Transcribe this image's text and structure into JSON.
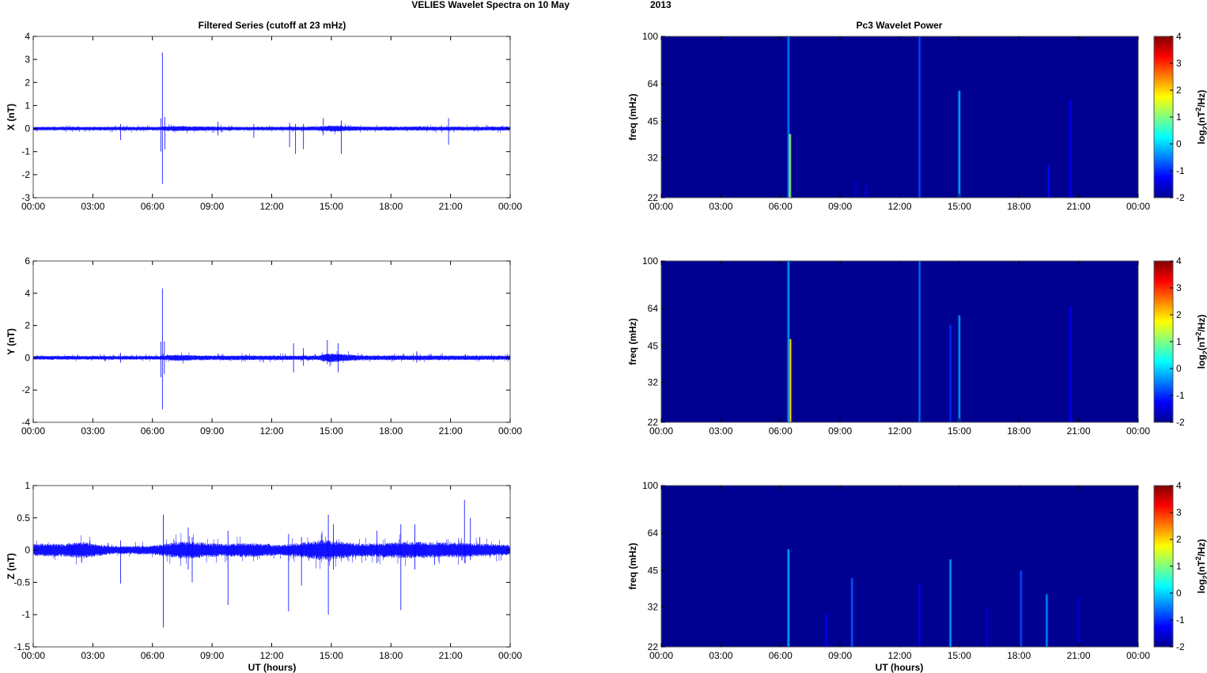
{
  "title": "VELIES Wavelet Spectra on 10 May",
  "title_year": "2013",
  "left_column_title": "Filtered Series (cutoff at 23 mHz)",
  "right_column_title": "Pc3 Wavelet Power",
  "xlabel": "UT (hours)",
  "colors": {
    "trace": "#0000ff",
    "background": "#00008f"
  },
  "chart_data": [
    {
      "type": "line",
      "id": "series-x",
      "ylabel": "X (nT)",
      "xlim": [
        0,
        24
      ],
      "ylim": [
        -3,
        4
      ],
      "yticks": [
        -3,
        -2,
        -1,
        0,
        1,
        2,
        3,
        4
      ],
      "x_tick_hours": [
        0,
        3,
        6,
        9,
        12,
        15,
        18,
        21,
        24
      ],
      "x_tick_labels": [
        "00:00",
        "03:00",
        "06:00",
        "09:00",
        "12:00",
        "15:00",
        "18:00",
        "21:00",
        "00:00"
      ],
      "noise_envelope": [
        {
          "t": 0,
          "a": 0.08
        },
        {
          "t": 6.3,
          "a": 0.08
        },
        {
          "t": 7.0,
          "a": 0.12
        },
        {
          "t": 8.0,
          "a": 0.1
        },
        {
          "t": 10.5,
          "a": 0.08
        },
        {
          "t": 14.3,
          "a": 0.09
        },
        {
          "t": 15.0,
          "a": 0.14
        },
        {
          "t": 16.5,
          "a": 0.09
        },
        {
          "t": 24,
          "a": 0.09
        }
      ],
      "spikes": [
        {
          "t": 6.5,
          "max": 3.3,
          "min": -2.4
        },
        {
          "t": 6.42,
          "max": 0.45,
          "min": -1.0
        },
        {
          "t": 6.62,
          "max": 0.5,
          "min": -0.9
        },
        {
          "t": 12.9,
          "max": 0.25,
          "min": -0.8
        },
        {
          "t": 13.2,
          "max": 0.2,
          "min": -1.1
        },
        {
          "t": 13.6,
          "max": 0.2,
          "min": -0.9
        },
        {
          "t": 14.6,
          "max": 0.45,
          "min": -0.3
        },
        {
          "t": 15.5,
          "max": 0.35,
          "min": -1.1
        },
        {
          "t": 20.9,
          "max": 0.45,
          "min": -0.7
        },
        {
          "t": 4.4,
          "max": 0.2,
          "min": -0.5
        },
        {
          "t": 11.1,
          "max": 0.2,
          "min": -0.4
        },
        {
          "t": 9.3,
          "max": 0.3,
          "min": -0.3
        }
      ]
    },
    {
      "type": "line",
      "id": "series-y",
      "ylabel": "Y (nT)",
      "xlim": [
        0,
        24
      ],
      "ylim": [
        -4,
        6
      ],
      "yticks": [
        -4,
        -2,
        0,
        2,
        4,
        6
      ],
      "x_tick_hours": [
        0,
        3,
        6,
        9,
        12,
        15,
        18,
        21,
        24
      ],
      "x_tick_labels": [
        "00:00",
        "03:00",
        "06:00",
        "09:00",
        "12:00",
        "15:00",
        "18:00",
        "21:00",
        "00:00"
      ],
      "noise_envelope": [
        {
          "t": 0,
          "a": 0.12
        },
        {
          "t": 6.3,
          "a": 0.12
        },
        {
          "t": 7.2,
          "a": 0.2
        },
        {
          "t": 8.5,
          "a": 0.15
        },
        {
          "t": 14.3,
          "a": 0.14
        },
        {
          "t": 14.9,
          "a": 0.3
        },
        {
          "t": 16.5,
          "a": 0.15
        },
        {
          "t": 24,
          "a": 0.14
        }
      ],
      "spikes": [
        {
          "t": 6.5,
          "max": 4.3,
          "min": -3.2
        },
        {
          "t": 6.42,
          "max": 1.0,
          "min": -1.2
        },
        {
          "t": 6.6,
          "max": 1.0,
          "min": -1.0
        },
        {
          "t": 13.1,
          "max": 0.9,
          "min": -0.9
        },
        {
          "t": 13.6,
          "max": 0.6,
          "min": -0.5
        },
        {
          "t": 14.8,
          "max": 1.1,
          "min": -0.4
        },
        {
          "t": 15.35,
          "max": 0.9,
          "min": -0.9
        },
        {
          "t": 19.3,
          "max": 0.4,
          "min": -0.3
        },
        {
          "t": 4.4,
          "max": 0.3,
          "min": -0.3
        }
      ]
    },
    {
      "type": "line",
      "id": "series-z",
      "ylabel": "Z (nT)",
      "xlim": [
        0,
        24
      ],
      "ylim": [
        -1.5,
        1
      ],
      "yticks": [
        -1.5,
        -1,
        -0.5,
        0,
        0.5,
        1
      ],
      "x_tick_hours": [
        0,
        3,
        6,
        9,
        12,
        15,
        18,
        21,
        24
      ],
      "x_tick_labels": [
        "00:00",
        "03:00",
        "06:00",
        "09:00",
        "12:00",
        "15:00",
        "18:00",
        "21:00",
        "00:00"
      ],
      "noise_envelope": [
        {
          "t": 0,
          "a": 0.1
        },
        {
          "t": 1.5,
          "a": 0.1
        },
        {
          "t": 2.5,
          "a": 0.13
        },
        {
          "t": 4.0,
          "a": 0.06
        },
        {
          "t": 6.0,
          "a": 0.07
        },
        {
          "t": 7.5,
          "a": 0.14
        },
        {
          "t": 9.5,
          "a": 0.1
        },
        {
          "t": 11.0,
          "a": 0.11
        },
        {
          "t": 12.5,
          "a": 0.08
        },
        {
          "t": 14.6,
          "a": 0.16
        },
        {
          "t": 16.5,
          "a": 0.1
        },
        {
          "t": 19.0,
          "a": 0.13
        },
        {
          "t": 22.0,
          "a": 0.11
        },
        {
          "t": 24,
          "a": 0.08
        }
      ],
      "spikes": [
        {
          "t": 6.55,
          "max": 0.55,
          "min": -1.2
        },
        {
          "t": 7.8,
          "max": 0.35,
          "min": -0.3
        },
        {
          "t": 8.0,
          "max": 0.2,
          "min": -0.5
        },
        {
          "t": 9.8,
          "max": 0.3,
          "min": -0.85
        },
        {
          "t": 4.4,
          "max": 0.15,
          "min": -0.52
        },
        {
          "t": 12.85,
          "max": 0.25,
          "min": -0.95
        },
        {
          "t": 13.5,
          "max": 0.2,
          "min": -0.55
        },
        {
          "t": 14.85,
          "max": 0.55,
          "min": -1.0
        },
        {
          "t": 15.1,
          "max": 0.4,
          "min": -0.3
        },
        {
          "t": 18.5,
          "max": 0.4,
          "min": -0.93
        },
        {
          "t": 19.2,
          "max": 0.4,
          "min": -0.3
        },
        {
          "t": 21.7,
          "max": 0.78,
          "min": -0.2
        },
        {
          "t": 22.0,
          "max": 0.5,
          "min": -0.15
        },
        {
          "t": 17.3,
          "max": 0.3,
          "min": -0.2
        }
      ]
    },
    {
      "type": "heatmap",
      "id": "wavelet-x",
      "ylabel": "freq (mHz)",
      "xlim": [
        0,
        24
      ],
      "ylim": [
        22,
        100
      ],
      "yscale": "log",
      "yticks": [
        22,
        32,
        45,
        64,
        100
      ],
      "x_tick_hours": [
        0,
        3,
        6,
        9,
        12,
        15,
        18,
        21,
        24
      ],
      "x_tick_labels": [
        "00:00",
        "03:00",
        "06:00",
        "09:00",
        "12:00",
        "15:00",
        "18:00",
        "21:00",
        "00:00"
      ],
      "colorbar_label": "log2(nT2/Hz)",
      "clim": [
        -2,
        4
      ],
      "cticks": [
        -2,
        -1,
        0,
        1,
        2,
        3,
        4
      ],
      "background_level": -1.9,
      "events": [
        {
          "t": 6.4,
          "fmin": 22,
          "fmax": 100,
          "level": -0.5
        },
        {
          "t": 6.48,
          "fmin": 22,
          "fmax": 40,
          "level": 1.2
        },
        {
          "t": 13.0,
          "fmin": 22,
          "fmax": 100,
          "level": -0.8
        },
        {
          "t": 15.0,
          "fmin": 22,
          "fmax": 60,
          "level": -0.2
        },
        {
          "t": 19.5,
          "fmin": 22,
          "fmax": 30,
          "level": -1.2
        },
        {
          "t": 20.6,
          "fmin": 22,
          "fmax": 55,
          "level": -1.3
        },
        {
          "t": 9.8,
          "fmin": 22,
          "fmax": 26,
          "level": -1.5
        },
        {
          "t": 10.3,
          "fmin": 22,
          "fmax": 25,
          "level": -1.5
        }
      ]
    },
    {
      "type": "heatmap",
      "id": "wavelet-y",
      "ylabel": "freq (mHz)",
      "xlim": [
        0,
        24
      ],
      "ylim": [
        22,
        100
      ],
      "yscale": "log",
      "yticks": [
        22,
        32,
        45,
        64,
        100
      ],
      "x_tick_hours": [
        0,
        3,
        6,
        9,
        12,
        15,
        18,
        21,
        24
      ],
      "x_tick_labels": [
        "00:00",
        "03:00",
        "06:00",
        "09:00",
        "12:00",
        "15:00",
        "18:00",
        "21:00",
        "00:00"
      ],
      "colorbar_label": "log2(nT2/Hz)",
      "clim": [
        -2,
        4
      ],
      "cticks": [
        -2,
        -1,
        0,
        1,
        2,
        3,
        4
      ],
      "background_level": -1.9,
      "events": [
        {
          "t": 6.4,
          "fmin": 22,
          "fmax": 100,
          "level": -0.3
        },
        {
          "t": 6.5,
          "fmin": 22,
          "fmax": 48,
          "level": 2.0
        },
        {
          "t": 13.0,
          "fmin": 22,
          "fmax": 100,
          "level": -0.6
        },
        {
          "t": 14.55,
          "fmin": 22,
          "fmax": 55,
          "level": -1.0
        },
        {
          "t": 15.0,
          "fmin": 22,
          "fmax": 60,
          "level": -0.3
        },
        {
          "t": 20.6,
          "fmin": 22,
          "fmax": 65,
          "level": -1.3
        }
      ]
    },
    {
      "type": "heatmap",
      "id": "wavelet-z",
      "ylabel": "freq (mHz)",
      "xlim": [
        0,
        24
      ],
      "ylim": [
        22,
        100
      ],
      "yscale": "log",
      "yticks": [
        22,
        32,
        45,
        64,
        100
      ],
      "x_tick_hours": [
        0,
        3,
        6,
        9,
        12,
        15,
        18,
        21,
        24
      ],
      "x_tick_labels": [
        "00:00",
        "03:00",
        "06:00",
        "09:00",
        "12:00",
        "15:00",
        "18:00",
        "21:00",
        "00:00"
      ],
      "colorbar_label": "log2(nT2/Hz)",
      "clim": [
        -2,
        4
      ],
      "cticks": [
        -2,
        -1,
        0,
        1,
        2,
        3,
        4
      ],
      "background_level": -1.9,
      "events": [
        {
          "t": 6.4,
          "fmin": 22,
          "fmax": 55,
          "level": -0.2
        },
        {
          "t": 8.3,
          "fmin": 22,
          "fmax": 30,
          "level": -1.3
        },
        {
          "t": 9.6,
          "fmin": 22,
          "fmax": 42,
          "level": -0.7
        },
        {
          "t": 13.0,
          "fmin": 22,
          "fmax": 40,
          "level": -1.3
        },
        {
          "t": 14.55,
          "fmin": 22,
          "fmax": 50,
          "level": -0.3
        },
        {
          "t": 16.4,
          "fmin": 22,
          "fmax": 32,
          "level": -1.5
        },
        {
          "t": 18.1,
          "fmin": 22,
          "fmax": 45,
          "level": -0.8
        },
        {
          "t": 19.4,
          "fmin": 22,
          "fmax": 36,
          "level": -0.4
        },
        {
          "t": 21.0,
          "fmin": 22,
          "fmax": 35,
          "level": -1.5
        }
      ]
    }
  ]
}
